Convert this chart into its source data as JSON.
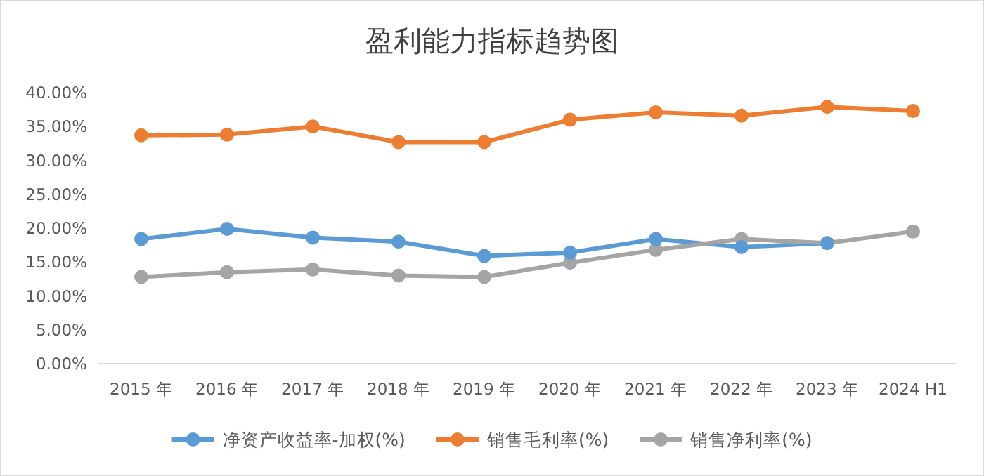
{
  "chart_data": {
    "type": "line",
    "title": "盈利能力指标趋势图",
    "categories": [
      "2015 年",
      "2016 年",
      "2017 年",
      "2018 年",
      "2019 年",
      "2020 年",
      "2021 年",
      "2022 年",
      "2023 年",
      "2024 H1"
    ],
    "series": [
      {
        "name": "净资产收益率-加权(%)",
        "color": "#5b9bd5",
        "values": [
          18.4,
          19.9,
          18.6,
          18.0,
          15.9,
          16.4,
          18.4,
          17.2,
          17.8,
          null
        ]
      },
      {
        "name": "销售毛利率(%)",
        "color": "#ed7d31",
        "values": [
          33.7,
          33.8,
          35.0,
          32.7,
          32.7,
          36.0,
          37.1,
          36.6,
          37.9,
          37.3
        ]
      },
      {
        "name": "销售净利率(%)",
        "color": "#a5a5a5",
        "values": [
          12.8,
          13.5,
          13.9,
          13.0,
          12.8,
          14.9,
          16.8,
          18.4,
          17.8,
          19.5
        ]
      }
    ],
    "ylim": [
      0,
      40
    ],
    "yticks": [
      {
        "value": 0,
        "label": "0.00%"
      },
      {
        "value": 5,
        "label": "5.00%"
      },
      {
        "value": 10,
        "label": "10.00%"
      },
      {
        "value": 15,
        "label": "15.00%"
      },
      {
        "value": 20,
        "label": "20.00%"
      },
      {
        "value": 25,
        "label": "25.00%"
      },
      {
        "value": 30,
        "label": "30.00%"
      },
      {
        "value": 35,
        "label": "35.00%"
      },
      {
        "value": 40,
        "label": "40.00%"
      }
    ],
    "grid": false,
    "legend": "bottom",
    "marker": "circle",
    "line_style": "solid"
  }
}
